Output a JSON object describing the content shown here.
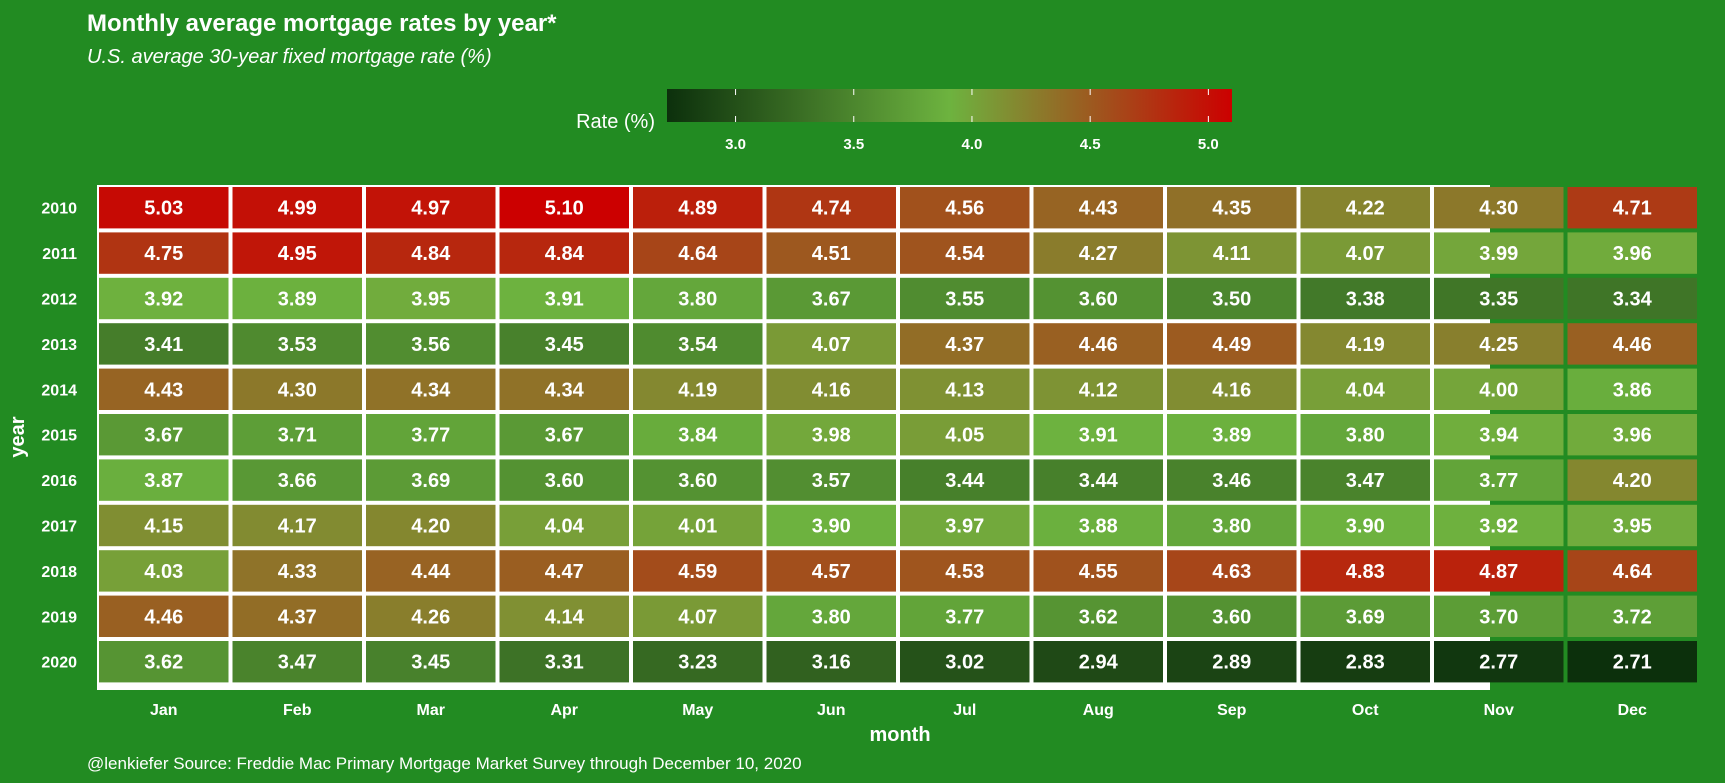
{
  "chart_data": {
    "type": "heatmap",
    "title": "Monthly average mortgage rates by year*",
    "subtitle": "U.S. average 30-year fixed mortgage rate (%)",
    "xlabel": "month",
    "ylabel": "year",
    "caption": "@lenkiefer Source: Freddie Mac Primary Mortgage Market Survey through December 10, 2020",
    "legend": {
      "title": "Rate (%)",
      "placement": "top-center",
      "ticks": [
        "3.0",
        "3.5",
        "4.0",
        "4.5",
        "5.0"
      ],
      "tick_values": [
        3.0,
        3.5,
        4.0,
        4.5,
        5.0
      ],
      "min": 2.71,
      "max": 5.1,
      "colors": [
        "#0c300c",
        "#6db33f",
        "#cc0000"
      ]
    },
    "x": [
      "Jan",
      "Feb",
      "Mar",
      "Apr",
      "May",
      "Jun",
      "Jul",
      "Aug",
      "Sep",
      "Oct",
      "Nov",
      "Dec"
    ],
    "y": [
      "2010",
      "2011",
      "2012",
      "2013",
      "2014",
      "2015",
      "2016",
      "2017",
      "2018",
      "2019",
      "2020"
    ],
    "values": [
      [
        5.03,
        4.99,
        4.97,
        5.1,
        4.89,
        4.74,
        4.56,
        4.43,
        4.35,
        4.22,
        4.3,
        4.71
      ],
      [
        4.75,
        4.95,
        4.84,
        4.84,
        4.64,
        4.51,
        4.54,
        4.27,
        4.11,
        4.07,
        3.99,
        3.96
      ],
      [
        3.92,
        3.89,
        3.95,
        3.91,
        3.8,
        3.67,
        3.55,
        3.6,
        3.5,
        3.38,
        3.35,
        3.34
      ],
      [
        3.41,
        3.53,
        3.56,
        3.45,
        3.54,
        4.07,
        4.37,
        4.46,
        4.49,
        4.19,
        4.25,
        4.46
      ],
      [
        4.43,
        4.3,
        4.34,
        4.34,
        4.19,
        4.16,
        4.13,
        4.12,
        4.16,
        4.04,
        4.0,
        3.86
      ],
      [
        3.67,
        3.71,
        3.77,
        3.67,
        3.84,
        3.98,
        4.05,
        3.91,
        3.89,
        3.8,
        3.94,
        3.96
      ],
      [
        3.87,
        3.66,
        3.69,
        3.6,
        3.6,
        3.57,
        3.44,
        3.44,
        3.46,
        3.47,
        3.77,
        4.2
      ],
      [
        4.15,
        4.17,
        4.2,
        4.04,
        4.01,
        3.9,
        3.97,
        3.88,
        3.8,
        3.9,
        3.92,
        3.95
      ],
      [
        4.03,
        4.33,
        4.44,
        4.47,
        4.59,
        4.57,
        4.53,
        4.55,
        4.63,
        4.83,
        4.87,
        4.64
      ],
      [
        4.46,
        4.37,
        4.26,
        4.14,
        4.07,
        3.8,
        3.77,
        3.62,
        3.6,
        3.69,
        3.7,
        3.72
      ],
      [
        3.62,
        3.47,
        3.45,
        3.31,
        3.23,
        3.16,
        3.02,
        2.94,
        2.89,
        2.83,
        2.77,
        2.71
      ]
    ],
    "grid": false
  }
}
